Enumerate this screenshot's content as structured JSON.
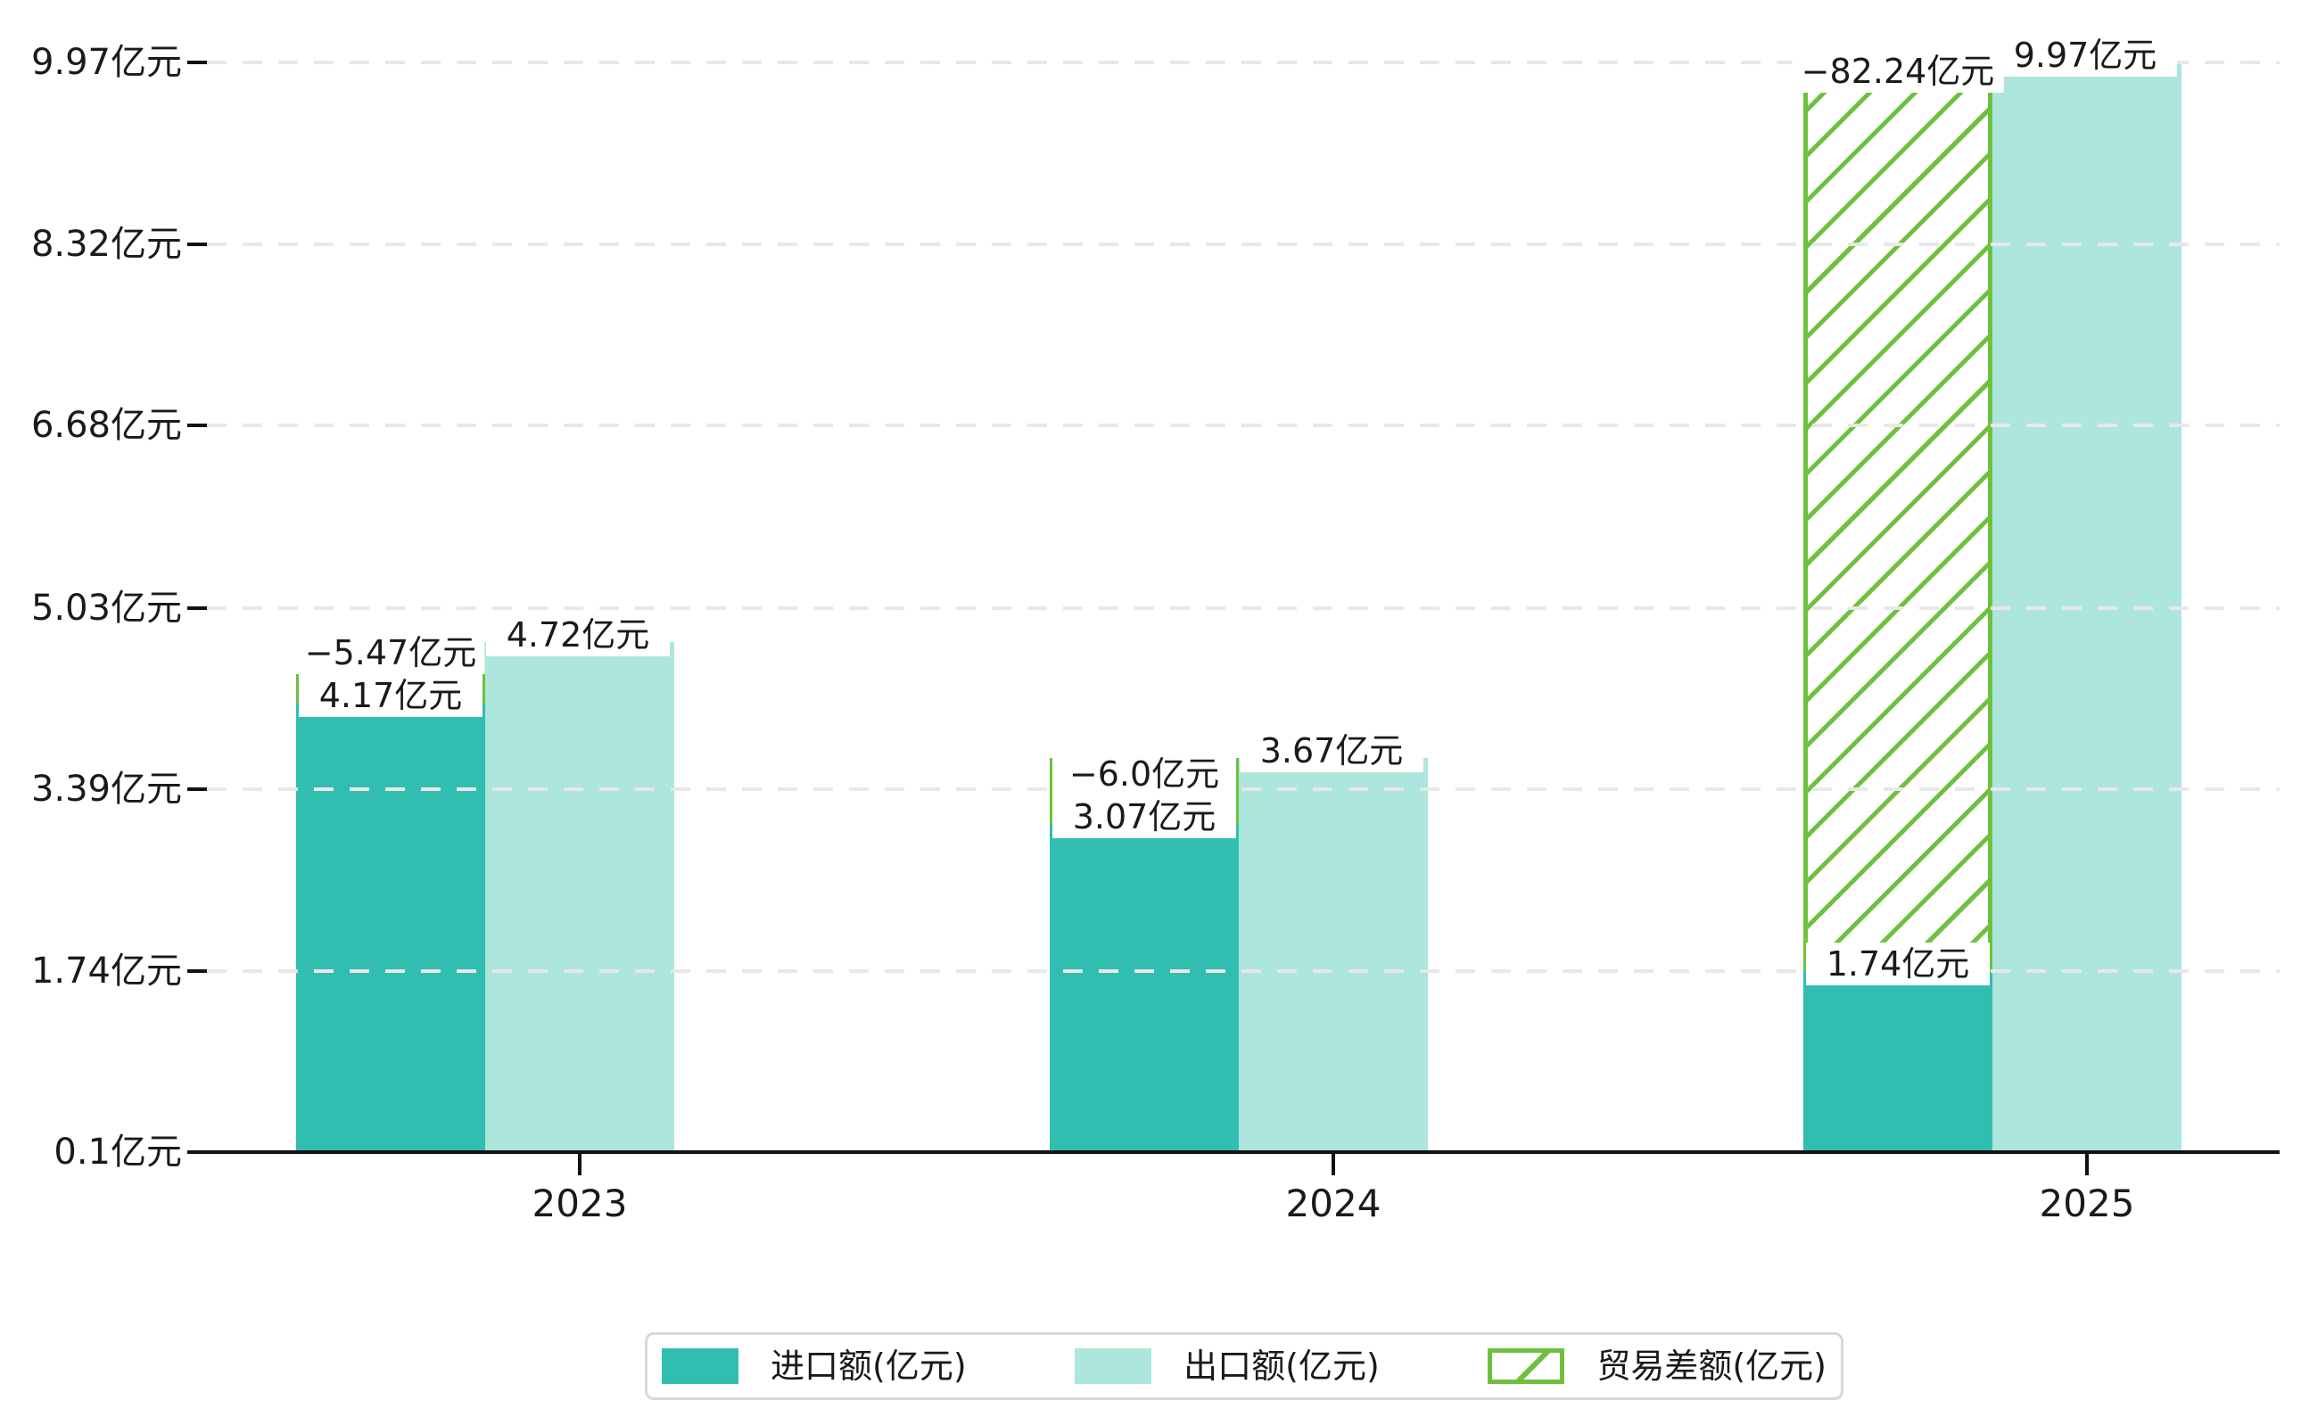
{
  "chart_data": {
    "type": "bar",
    "title": "",
    "categories": [
      "2023",
      "2024",
      "2025"
    ],
    "series": [
      {
        "name": "进口额(亿元)",
        "values": [
          4.17,
          3.07,
          1.74
        ],
        "labels": [
          "4.17亿元",
          "3.07亿元",
          "1.74亿元"
        ],
        "color": "#31beb0",
        "style": "solid"
      },
      {
        "name": "出口额(亿元)",
        "values": [
          4.72,
          3.67,
          9.97
        ],
        "labels": [
          "4.72亿元",
          "3.67亿元",
          "9.97亿元"
        ],
        "color": "#ace6dc",
        "style": "solid"
      },
      {
        "name": "贸易差额(亿元)",
        "values": [
          -5.47,
          -6.0,
          -82.24
        ],
        "labels": [
          "−5.47亿元",
          "−6.0亿元",
          "−82.24亿元"
        ],
        "color": "#6ec13e",
        "style": "hatched",
        "note": "hatched span drawn over the import bar, spanning from import bar top to export bar top"
      }
    ],
    "y_axis": {
      "tick_labels": [
        "9.97亿元",
        "8.32亿元",
        "6.68亿元",
        "5.03亿元",
        "3.39亿元",
        "1.74亿元",
        "0.1亿元"
      ],
      "tick_values": [
        9.97,
        8.32,
        6.68,
        5.03,
        3.39,
        1.74,
        0.1
      ],
      "min": 0.1,
      "max": 9.97
    },
    "x_axis": {
      "tick_labels": [
        "2023",
        "2024",
        "2025"
      ]
    },
    "grid": "dashed horizontal gridlines drawn over bars",
    "legend": {
      "position": "bottom-center",
      "entries": [
        "进口额(亿元)",
        "出口额(亿元)",
        "贸易差额(亿元)"
      ]
    },
    "colors": {
      "import_bar": "#31beb0",
      "export_bar": "#ace6dc",
      "balance_hatch": "#6ec13e",
      "grid": "#e8e8e8",
      "axis": "#111111",
      "text": "#1a1a1a",
      "background": "#ffffff",
      "legend_border": "#d8d8d8",
      "label_box_background": "#ffffff"
    }
  }
}
